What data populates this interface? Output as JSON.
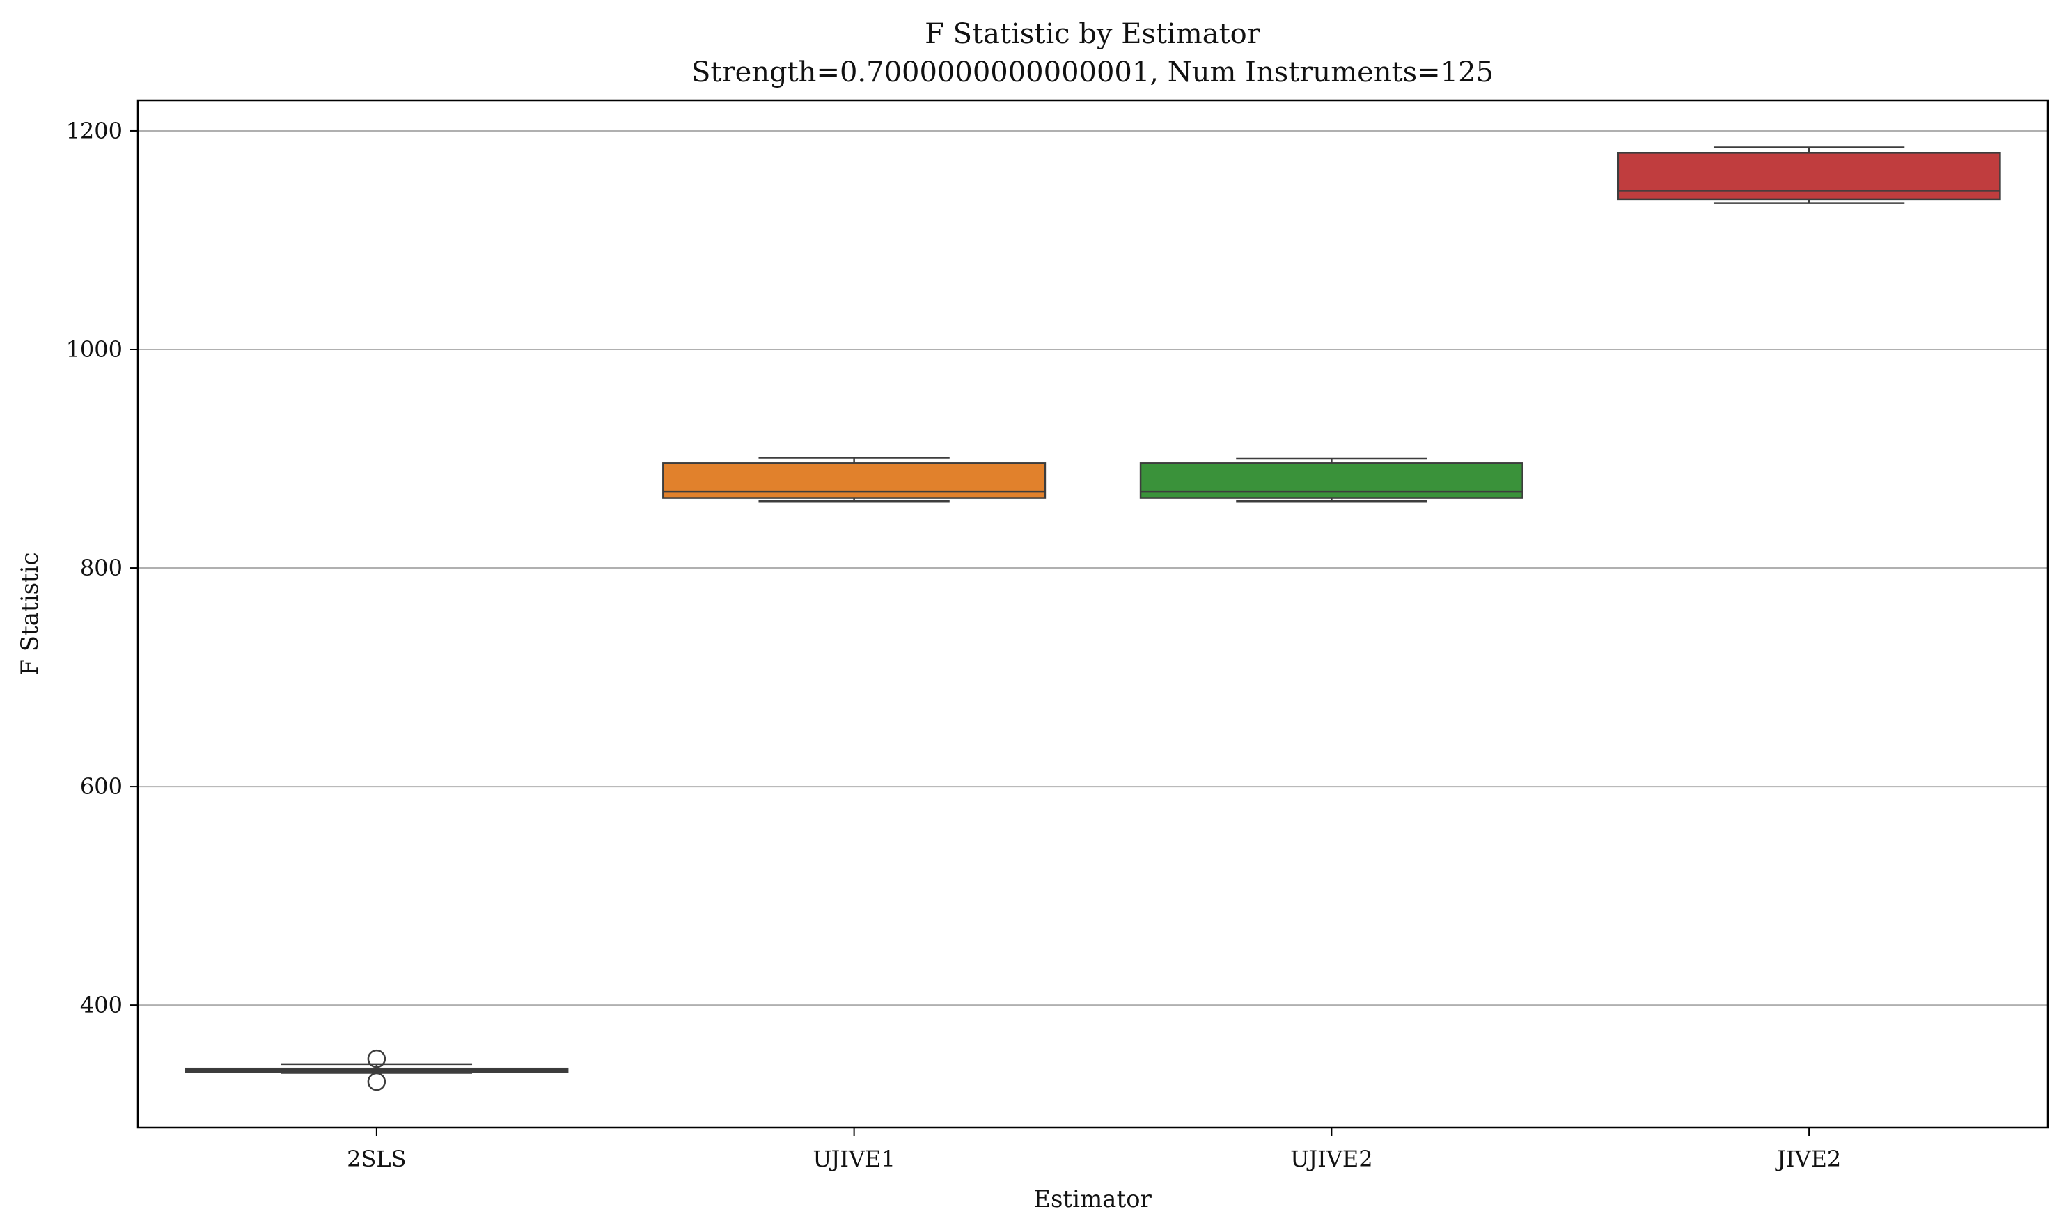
{
  "chart_data": {
    "type": "box",
    "title": "F Statistic by Estimator",
    "subtitle": "Strength=0.7000000000000001, Num Instruments=125",
    "xlabel": "Estimator",
    "ylabel": "F Statistic",
    "ylim": [
      288,
      1228
    ],
    "yticks": [
      400,
      600,
      800,
      1000,
      1200
    ],
    "grid": "y",
    "categories": [
      "2SLS",
      "UJIVE1",
      "UJIVE2",
      "JIVE2"
    ],
    "boxes": [
      {
        "category": "2SLS",
        "min": 338,
        "q1": 339,
        "median": 340,
        "q3": 342,
        "max": 346,
        "outliers": [
          351,
          330
        ],
        "color": "#3a3a3a"
      },
      {
        "category": "UJIVE1",
        "min": 861,
        "q1": 864,
        "median": 870,
        "q3": 896,
        "max": 901,
        "outliers": [],
        "color": "#e1812c"
      },
      {
        "category": "UJIVE2",
        "min": 861,
        "q1": 864,
        "median": 870,
        "q3": 896,
        "max": 900,
        "outliers": [],
        "color": "#3a923a"
      },
      {
        "category": "JIVE2",
        "min": 1134,
        "q1": 1137,
        "median": 1145,
        "q3": 1180,
        "max": 1185,
        "outliers": [],
        "color": "#c03d3e"
      }
    ]
  }
}
